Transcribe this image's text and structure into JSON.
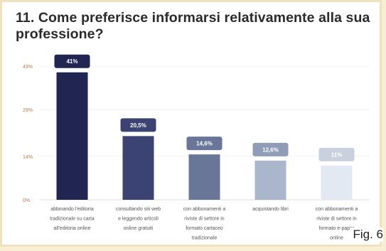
{
  "title": "11. Come preferisce informarsi relativamente alla sua professione?",
  "figure_label": "Fig. 6",
  "chart_data": {
    "type": "bar",
    "title": "11. Come preferisce informarsi relativamente alla sua professione?",
    "xlabel": "",
    "ylabel": "",
    "ylim": [
      0,
      43
    ],
    "yticks": [
      0,
      14,
      29,
      43
    ],
    "ytick_labels": [
      "0%",
      "14%",
      "29%",
      "43%"
    ],
    "grid": true,
    "legend": "none",
    "categories": [
      [
        "abbinando l'editoria",
        "tradizionale su carta",
        "all'editoria online"
      ],
      [
        "consultando siti web",
        "e leggendo articoli",
        "online gratuiti"
      ],
      [
        "con abbonamenti a",
        "riviste di settore in",
        "formato cartaceo",
        "tradizionale"
      ],
      [
        "acquistando libri"
      ],
      [
        "con abbonamenti a",
        "riviste di settore in",
        "formato e-paper",
        "online"
      ]
    ],
    "values": [
      41,
      20.5,
      14.6,
      12.6,
      11
    ],
    "data_labels": [
      "41%",
      "20,5%",
      "14,6%",
      "12,6%",
      "11%"
    ],
    "colors": [
      "#202552",
      "#3a4372",
      "#6a7697",
      "#aab6cb",
      "#e3e9f2"
    ],
    "label_box_colors": [
      "#202552",
      "#3a4372",
      "#6a7697",
      "#8f9db6",
      "#c9d1df"
    ]
  }
}
